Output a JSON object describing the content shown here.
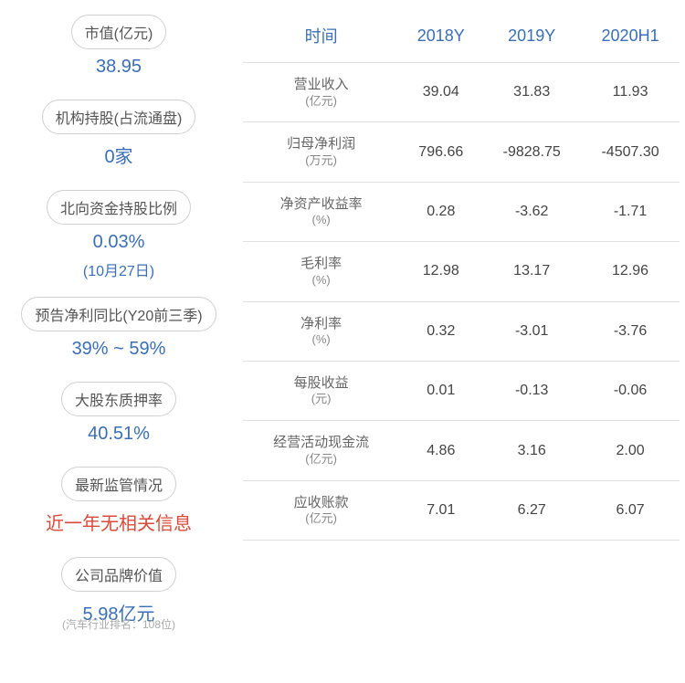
{
  "left": [
    {
      "label": "市值(亿元)",
      "value": "38.95",
      "sub": ""
    },
    {
      "label": "机构持股(占流通盘)",
      "value": "0家",
      "sub": ""
    },
    {
      "label": "北向资金持股比例",
      "value": "0.03%",
      "sub": "(10月27日)",
      "sub_color": "blue"
    },
    {
      "label": "预告净利同比(Y20前三季)",
      "value": "39% ~ 59%",
      "sub": ""
    },
    {
      "label": "大股东质押率",
      "value": "40.51%",
      "sub": ""
    },
    {
      "label": "最新监管情况",
      "value": "近一年无相关信息",
      "sub": "",
      "red": true
    },
    {
      "label": "公司品牌价值",
      "value": "5.98亿元",
      "sub": "(汽车行业排名：108位)"
    }
  ],
  "table": {
    "headers": [
      "时间",
      "2018Y",
      "2019Y",
      "2020H1"
    ],
    "rows": [
      {
        "metric": "营业收入",
        "unit": "(亿元)",
        "cells": [
          "39.04",
          "31.83",
          "11.93"
        ]
      },
      {
        "metric": "归母净利润",
        "unit": "(万元)",
        "cells": [
          "796.66",
          "-9828.75",
          "-4507.30"
        ]
      },
      {
        "metric": "净资产收益率",
        "unit": "(%)",
        "cells": [
          "0.28",
          "-3.62",
          "-1.71"
        ]
      },
      {
        "metric": "毛利率",
        "unit": "(%)",
        "cells": [
          "12.98",
          "13.17",
          "12.96"
        ]
      },
      {
        "metric": "净利率",
        "unit": "(%)",
        "cells": [
          "0.32",
          "-3.01",
          "-3.76"
        ]
      },
      {
        "metric": "每股收益",
        "unit": "(元)",
        "cells": [
          "0.01",
          "-0.13",
          "-0.06"
        ]
      },
      {
        "metric": "经营活动现金流",
        "unit": "(亿元)",
        "cells": [
          "4.86",
          "3.16",
          "2.00"
        ]
      },
      {
        "metric": "应收账款",
        "unit": "(亿元)",
        "cells": [
          "7.01",
          "6.27",
          "6.07"
        ]
      }
    ]
  },
  "colors": {
    "accent": "#3a6fb7",
    "red": "#d94a3a",
    "border": "#e0e0e0",
    "pill_border": "#d0d0d0",
    "text": "#444",
    "muted": "#888"
  }
}
